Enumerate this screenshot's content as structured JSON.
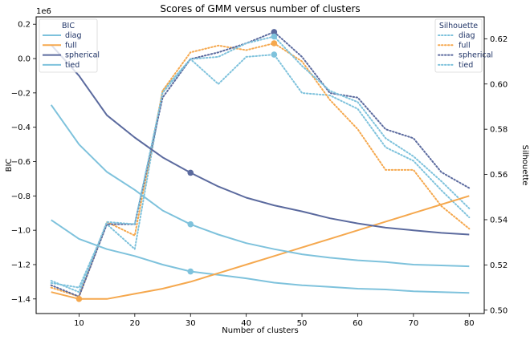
{
  "chart_data": {
    "type": "line",
    "title": "Scores of GMM versus number of clusters",
    "xlabel": "Number of clusters",
    "ylabel_left": "BIC",
    "ylabel_right": "Silhouette",
    "left_offset_label": "1e6",
    "xlim": [
      2.3,
      82.7
    ],
    "ylim_left": [
      -1.485,
      0.243
    ],
    "ylim_right": [
      0.4985,
      0.6297
    ],
    "x_ticks": [
      10,
      20,
      30,
      40,
      50,
      60,
      70,
      80
    ],
    "y_left_ticks": [
      0.2,
      0.0,
      -0.2,
      -0.4,
      -0.6,
      -0.8,
      -1.0,
      -1.2,
      -1.4
    ],
    "y_left_tick_labels": [
      "0.2",
      "0.0",
      "−0.2",
      "−0.4",
      "−0.6",
      "−0.8",
      "−1.0",
      "−1.2",
      "−1.4"
    ],
    "y_right_ticks": [
      0.5,
      0.52,
      0.54,
      0.56,
      0.58,
      0.6,
      0.62
    ],
    "y_right_tick_labels": [
      "0.50",
      "0.52",
      "0.54",
      "0.56",
      "0.58",
      "0.60",
      "0.62"
    ],
    "x": [
      5,
      10,
      15,
      20,
      25,
      30,
      35,
      40,
      45,
      50,
      55,
      60,
      65,
      70,
      75,
      80
    ],
    "bic_series": [
      {
        "name": "diag",
        "color": "#7ec2dc",
        "values": [
          -0.94,
          -1.05,
          -1.11,
          -1.15,
          -1.2,
          -1.24,
          -1.26,
          -1.28,
          -1.305,
          -1.32,
          -1.33,
          -1.34,
          -1.345,
          -1.355,
          -1.36,
          -1.365
        ],
        "marker_x": 30
      },
      {
        "name": "full",
        "color": "#f5a84e",
        "values": [
          -1.36,
          -1.4,
          -1.4,
          -1.37,
          -1.34,
          -1.3,
          -1.25,
          -1.2,
          -1.15,
          -1.1,
          -1.05,
          -1.0,
          -0.95,
          -0.9,
          -0.85,
          -0.8
        ],
        "marker_x": 10
      },
      {
        "name": "spherical",
        "color": "#5b6a9e",
        "values": [
          0.08,
          -0.1,
          -0.33,
          -0.46,
          -0.575,
          -0.665,
          -0.745,
          -0.81,
          -0.855,
          -0.89,
          -0.93,
          -0.96,
          -0.985,
          -1.0,
          -1.015,
          -1.025
        ],
        "marker_x": 30
      },
      {
        "name": "tied",
        "color": "#7ec2dc",
        "values": [
          -0.27,
          -0.5,
          -0.66,
          -0.765,
          -0.885,
          -0.965,
          -1.025,
          -1.075,
          -1.11,
          -1.14,
          -1.16,
          -1.175,
          -1.185,
          -1.2,
          -1.205,
          -1.21
        ],
        "marker_x": 30
      }
    ],
    "silhouette_series": [
      {
        "name": "diag",
        "color": "#7ec2dc",
        "values": [
          0.512,
          0.51,
          0.538,
          0.527,
          0.597,
          0.611,
          0.6,
          0.612,
          0.613,
          0.596,
          0.595,
          0.589,
          0.572,
          0.566,
          0.553,
          0.541
        ],
        "marker_x": 45
      },
      {
        "name": "full",
        "color": "#f5a84e",
        "values": [
          0.51,
          0.506,
          0.539,
          0.533,
          0.597,
          0.614,
          0.617,
          0.615,
          0.618,
          0.61,
          0.593,
          0.58,
          0.562,
          0.562,
          0.546,
          0.536
        ],
        "marker_x": 45
      },
      {
        "name": "spherical",
        "color": "#5b6a9e",
        "values": [
          0.511,
          0.506,
          0.538,
          0.538,
          0.594,
          0.611,
          0.614,
          0.618,
          0.623,
          0.612,
          0.596,
          0.594,
          0.58,
          0.576,
          0.561,
          0.554
        ],
        "marker_x": 45
      },
      {
        "name": "tied",
        "color": "#7ec2dc",
        "values": [
          0.513,
          0.508,
          0.539,
          0.538,
          0.596,
          0.611,
          0.612,
          0.618,
          0.621,
          0.608,
          0.597,
          0.592,
          0.576,
          0.568,
          0.557,
          0.545
        ],
        "marker_x": 45
      }
    ],
    "legend_left": {
      "title": "BIC",
      "placement": "top-left",
      "entries": [
        "diag",
        "full",
        "spherical",
        "tied"
      ]
    },
    "legend_right": {
      "title": "Silhouette",
      "placement": "top-right",
      "entries": [
        "diag",
        "full",
        "spherical",
        "tied"
      ]
    },
    "grid": false
  }
}
